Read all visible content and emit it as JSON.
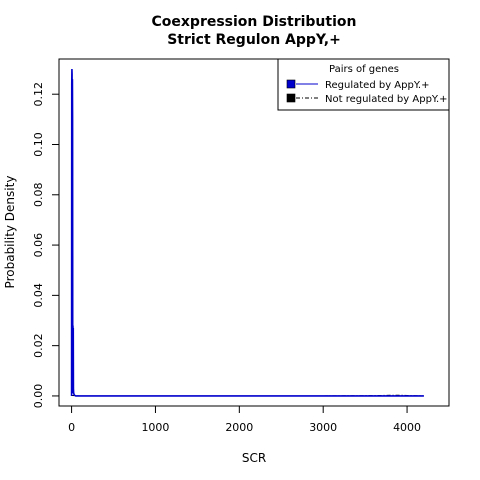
{
  "chart_data": {
    "type": "line",
    "title": "Coexpression Distribution",
    "subtitle": "Strict Regulon AppY,+",
    "xlabel": "SCR",
    "ylabel": "Probability Density",
    "xlim": [
      -150,
      4500
    ],
    "ylim": [
      -0.004,
      0.134
    ],
    "x_ticks": [
      0,
      1000,
      2000,
      3000,
      4000
    ],
    "x_tick_labels": [
      "0",
      "1000",
      "2000",
      "3000",
      "4000"
    ],
    "y_ticks": [
      0.0,
      0.02,
      0.04,
      0.06,
      0.08,
      0.1,
      0.12
    ],
    "y_tick_labels": [
      "0.00",
      "0.02",
      "0.04",
      "0.06",
      "0.08",
      "0.10",
      "0.12"
    ],
    "legend": {
      "title": "Pairs of genes",
      "position": "top-right",
      "entries": [
        "Regulated by  AppY.+",
        "Not regulated by  AppY.+"
      ]
    },
    "series": [
      {
        "name": "Regulated by  AppY.+",
        "color": "#0000cc",
        "line_style": "solid",
        "x": [
          0,
          2,
          4,
          6,
          8,
          10,
          12,
          14,
          16,
          18,
          20,
          22,
          24,
          26,
          28,
          30,
          35,
          40,
          45,
          50,
          60,
          80,
          100,
          200,
          500,
          1000,
          2000,
          3000,
          4200
        ],
        "y": [
          0.0,
          0.124,
          0.13,
          0.128,
          0.001,
          0.126,
          0.11,
          0.0015,
          0.028,
          0.026,
          0.027,
          0.003,
          0.0015,
          0.001,
          0.0008,
          0.0005,
          0.0003,
          0.0002,
          0.0001,
          0.0,
          0.0,
          0.0,
          0.0,
          0.0,
          0.0,
          0.0,
          0.0,
          0.0,
          0.0
        ]
      },
      {
        "name": "Not regulated by  AppY.+",
        "color": "#000000",
        "line_style": "dashed",
        "x": [
          0,
          50,
          100,
          500,
          1000,
          1500,
          2000,
          2500,
          3000,
          3500,
          3700,
          3900,
          4000,
          4100,
          4200
        ],
        "y": [
          0.0002,
          0.0001,
          0.0,
          0.0,
          0.0,
          0.0,
          0.0,
          0.0,
          0.0,
          0.0001,
          0.0002,
          0.0003,
          0.0002,
          0.0001,
          0.0
        ]
      }
    ],
    "colors": {
      "regulated": "#0000cc",
      "not_regulated": "#000000",
      "frame": "#000000"
    }
  }
}
